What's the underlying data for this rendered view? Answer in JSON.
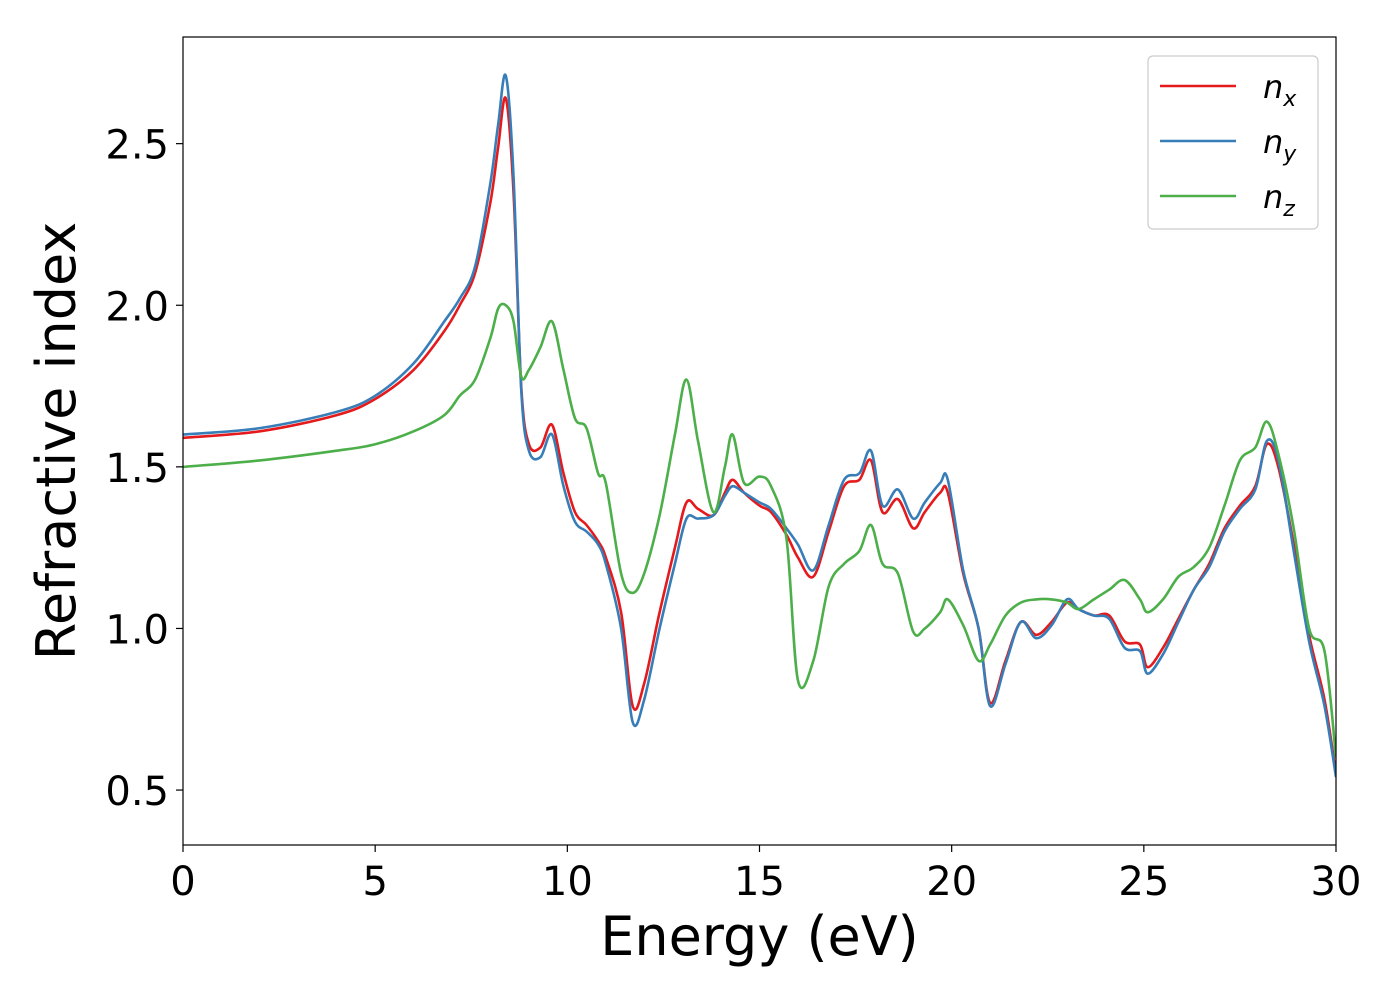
{
  "chart_data": {
    "type": "line",
    "title": "",
    "xlabel": "Energy (eV)",
    "ylabel": "Refractive index",
    "xlim": [
      0,
      30
    ],
    "ylim": [
      0.33,
      2.83
    ],
    "xticks": [
      0,
      5,
      10,
      15,
      20,
      25,
      30
    ],
    "xtick_labels": [
      "0",
      "5",
      "10",
      "15",
      "20",
      "25",
      "30"
    ],
    "yticks": [
      0.5,
      1.0,
      1.5,
      2.0,
      2.5
    ],
    "ytick_labels": [
      "0.5",
      "1.0",
      "1.5",
      "2.0",
      "2.5"
    ],
    "grid": false,
    "legend_position": "top-right",
    "series": [
      {
        "name": "n",
        "subscript": "x",
        "color": "#e41a1c",
        "x": [
          0,
          2,
          4,
          5,
          6,
          6.8,
          7.2,
          7.6,
          8.0,
          8.2,
          8.4,
          8.6,
          8.8,
          9.0,
          9.3,
          9.6,
          9.9,
          10.2,
          10.5,
          10.8,
          11.0,
          11.4,
          11.7,
          12.0,
          12.4,
          12.8,
          13.1,
          13.4,
          13.8,
          14.1,
          14.3,
          14.6,
          15.0,
          15.3,
          15.7,
          16.0,
          16.4,
          16.8,
          17.2,
          17.6,
          17.9,
          18.2,
          18.6,
          19.0,
          19.3,
          19.7,
          19.9,
          20.3,
          20.7,
          21.0,
          21.4,
          21.8,
          22.2,
          22.6,
          23.0,
          23.3,
          23.7,
          24.1,
          24.5,
          24.9,
          25.1,
          25.5,
          25.9,
          26.3,
          26.7,
          27.1,
          27.5,
          27.9,
          28.2,
          28.5,
          28.9,
          29.3,
          29.7,
          30.0
        ],
        "y": [
          1.59,
          1.61,
          1.66,
          1.71,
          1.8,
          1.92,
          2.0,
          2.1,
          2.32,
          2.49,
          2.64,
          2.35,
          1.75,
          1.57,
          1.56,
          1.63,
          1.48,
          1.36,
          1.32,
          1.27,
          1.22,
          1.05,
          0.76,
          0.83,
          1.05,
          1.25,
          1.39,
          1.37,
          1.35,
          1.42,
          1.46,
          1.42,
          1.38,
          1.36,
          1.29,
          1.22,
          1.16,
          1.3,
          1.44,
          1.46,
          1.52,
          1.36,
          1.4,
          1.31,
          1.36,
          1.42,
          1.42,
          1.17,
          1.0,
          0.77,
          0.9,
          1.02,
          0.98,
          1.02,
          1.08,
          1.06,
          1.04,
          1.04,
          0.96,
          0.95,
          0.88,
          0.94,
          1.03,
          1.12,
          1.2,
          1.31,
          1.38,
          1.44,
          1.57,
          1.5,
          1.26,
          0.98,
          0.78,
          0.55
        ]
      },
      {
        "name": "n",
        "subscript": "y",
        "color": "#377eb8",
        "x": [
          0,
          2,
          4,
          5,
          6,
          6.8,
          7.2,
          7.6,
          8.0,
          8.2,
          8.4,
          8.6,
          8.8,
          9.0,
          9.3,
          9.6,
          9.9,
          10.2,
          10.5,
          10.8,
          11.0,
          11.4,
          11.7,
          12.0,
          12.4,
          12.8,
          13.1,
          13.4,
          13.8,
          14.1,
          14.3,
          14.6,
          15.0,
          15.3,
          15.7,
          16.0,
          16.4,
          16.8,
          17.2,
          17.6,
          17.9,
          18.2,
          18.6,
          19.0,
          19.3,
          19.7,
          19.9,
          20.3,
          20.7,
          21.0,
          21.4,
          21.8,
          22.2,
          22.6,
          23.0,
          23.3,
          23.7,
          24.1,
          24.5,
          24.9,
          25.1,
          25.5,
          25.9,
          26.3,
          26.7,
          27.1,
          27.5,
          27.9,
          28.2,
          28.5,
          28.9,
          29.3,
          29.7,
          30.0
        ],
        "y": [
          1.6,
          1.62,
          1.67,
          1.72,
          1.82,
          1.95,
          2.02,
          2.12,
          2.38,
          2.56,
          2.71,
          2.4,
          1.74,
          1.55,
          1.53,
          1.6,
          1.44,
          1.33,
          1.3,
          1.26,
          1.2,
          1.0,
          0.71,
          0.78,
          1.0,
          1.2,
          1.34,
          1.34,
          1.35,
          1.41,
          1.44,
          1.42,
          1.39,
          1.37,
          1.31,
          1.26,
          1.18,
          1.32,
          1.46,
          1.48,
          1.55,
          1.38,
          1.43,
          1.34,
          1.39,
          1.45,
          1.46,
          1.18,
          1.0,
          0.76,
          0.89,
          1.02,
          0.97,
          1.01,
          1.09,
          1.06,
          1.04,
          1.03,
          0.94,
          0.93,
          0.86,
          0.92,
          1.02,
          1.12,
          1.19,
          1.3,
          1.37,
          1.43,
          1.58,
          1.52,
          1.24,
          0.96,
          0.76,
          0.54
        ]
      },
      {
        "name": "n",
        "subscript": "z",
        "color": "#4daf4a",
        "x": [
          0,
          2,
          4,
          5,
          6,
          6.8,
          7.2,
          7.6,
          8.0,
          8.2,
          8.4,
          8.6,
          8.8,
          9.0,
          9.3,
          9.6,
          9.9,
          10.2,
          10.5,
          10.8,
          11.0,
          11.4,
          11.7,
          12.0,
          12.4,
          12.8,
          13.1,
          13.4,
          13.8,
          14.1,
          14.3,
          14.6,
          15.0,
          15.3,
          15.7,
          16.0,
          16.4,
          16.8,
          17.2,
          17.6,
          17.9,
          18.2,
          18.6,
          19.0,
          19.3,
          19.7,
          19.9,
          20.3,
          20.7,
          21.0,
          21.4,
          21.8,
          22.2,
          22.6,
          23.0,
          23.3,
          23.7,
          24.1,
          24.5,
          24.9,
          25.1,
          25.5,
          25.9,
          26.3,
          26.7,
          27.1,
          27.5,
          27.9,
          28.2,
          28.5,
          28.9,
          29.3,
          29.7,
          30.0
        ],
        "y": [
          1.5,
          1.52,
          1.55,
          1.57,
          1.61,
          1.66,
          1.72,
          1.77,
          1.9,
          1.99,
          2.0,
          1.95,
          1.78,
          1.8,
          1.87,
          1.95,
          1.8,
          1.65,
          1.62,
          1.48,
          1.45,
          1.17,
          1.11,
          1.17,
          1.35,
          1.6,
          1.77,
          1.58,
          1.36,
          1.5,
          1.6,
          1.45,
          1.47,
          1.44,
          1.28,
          0.84,
          0.9,
          1.13,
          1.2,
          1.24,
          1.32,
          1.2,
          1.17,
          0.99,
          1.0,
          1.05,
          1.09,
          1.01,
          0.9,
          0.95,
          1.04,
          1.08,
          1.09,
          1.09,
          1.08,
          1.06,
          1.09,
          1.12,
          1.15,
          1.09,
          1.05,
          1.09,
          1.16,
          1.19,
          1.25,
          1.38,
          1.52,
          1.56,
          1.64,
          1.54,
          1.31,
          1.0,
          0.93,
          0.6
        ]
      }
    ]
  }
}
